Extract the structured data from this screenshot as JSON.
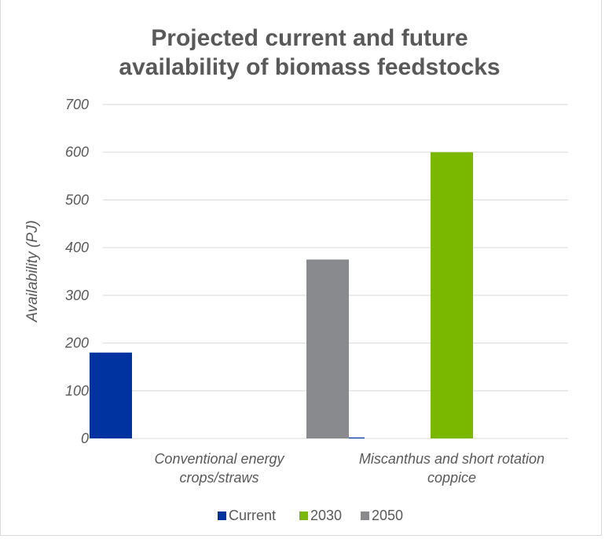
{
  "chart_data": {
    "type": "bar",
    "title_lines": [
      "Projected current and future",
      "availability of biomass feedstocks"
    ],
    "ylabel": "Availability (PJ)",
    "xlabel": "",
    "ylim": [
      0,
      700
    ],
    "yticks": [
      "0",
      "100",
      "200",
      "300",
      "400",
      "500",
      "600",
      "700"
    ],
    "grid": true,
    "legend_position": "bottom",
    "categories": [
      [
        "Conventional energy",
        "crops/straws"
      ],
      [
        "Miscanthus and short rotation",
        "coppice"
      ]
    ],
    "series": [
      {
        "name": "Current",
        "color": "#0033a0",
        "values": [
          180,
          2
        ]
      },
      {
        "name": "2030",
        "color": "#7ab800",
        "values": [
          0,
          600
        ]
      },
      {
        "name": "2050",
        "color": "#898a8d",
        "values": [
          375,
          0
        ]
      }
    ]
  }
}
